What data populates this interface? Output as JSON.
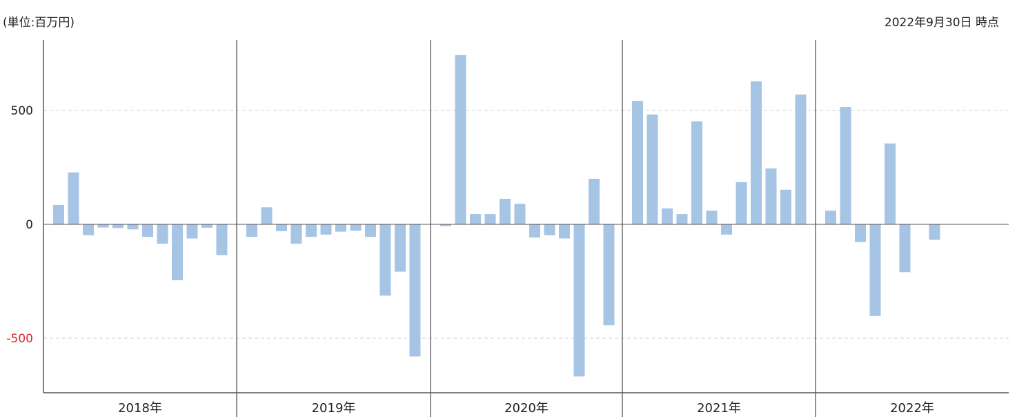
{
  "header": {
    "unit_label": "(単位:百万円)",
    "as_of_label": "2022年9月30日 時点"
  },
  "colors": {
    "bar": "#a6c4e4",
    "negative_tick": "#d9262c",
    "axis": "#555555",
    "grid": "#cccccc"
  },
  "chart_data": {
    "type": "bar",
    "unit": "百万円",
    "y_ticks": [
      {
        "value": 500,
        "label": "500"
      },
      {
        "value": 0,
        "label": "0"
      },
      {
        "value": -500,
        "label": "-500"
      }
    ],
    "ylim": [
      -740,
      810
    ],
    "grid": "dashed horizontal",
    "groups": [
      {
        "label": "2018年",
        "values": [
          85,
          228,
          -48,
          -14,
          -16,
          -22,
          -55,
          -85,
          -245,
          -62,
          -15,
          -135
        ]
      },
      {
        "label": "2019年",
        "values": [
          -55,
          75,
          -30,
          -85,
          -55,
          -45,
          -32,
          -28,
          -55,
          -313,
          -208,
          -580
        ]
      },
      {
        "label": "2020年",
        "values": [
          -8,
          743,
          45,
          45,
          112,
          90,
          -58,
          -48,
          -62,
          -668,
          200,
          -443
        ]
      },
      {
        "label": "2021年",
        "values": [
          542,
          482,
          70,
          45,
          452,
          60,
          -45,
          185,
          628,
          245,
          152,
          570
        ]
      },
      {
        "label": "2022年",
        "values": [
          60,
          515,
          -78,
          -402,
          355,
          -210,
          null,
          -68,
          null,
          null,
          null,
          null
        ]
      }
    ]
  }
}
